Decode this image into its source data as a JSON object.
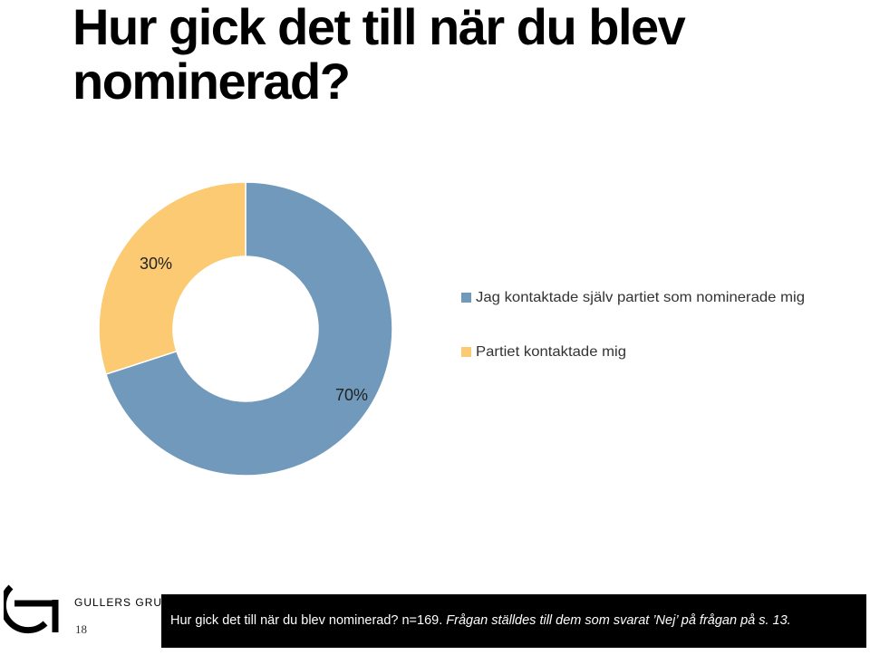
{
  "title": "Hur gick det till när du blev nominerad?",
  "chart_data": {
    "type": "donut",
    "slices": [
      {
        "label": "Jag kontaktade själv partiet som nominerade mig",
        "value": 70,
        "display": "70%",
        "color": "#7099bb"
      },
      {
        "label": "Partiet kontaktade  mig",
        "value": 30,
        "display": "30%",
        "color": "#fcca72"
      }
    ],
    "legend_position": "right"
  },
  "footer": {
    "page_number": "18",
    "logo_text": "GULLERS GRUPP",
    "note_main": "Hur gick det till när du blev nominerad? n=169. ",
    "note_italic": "Frågan ställdes till dem som svarat ’Nej’ på frågan på s. 13."
  }
}
